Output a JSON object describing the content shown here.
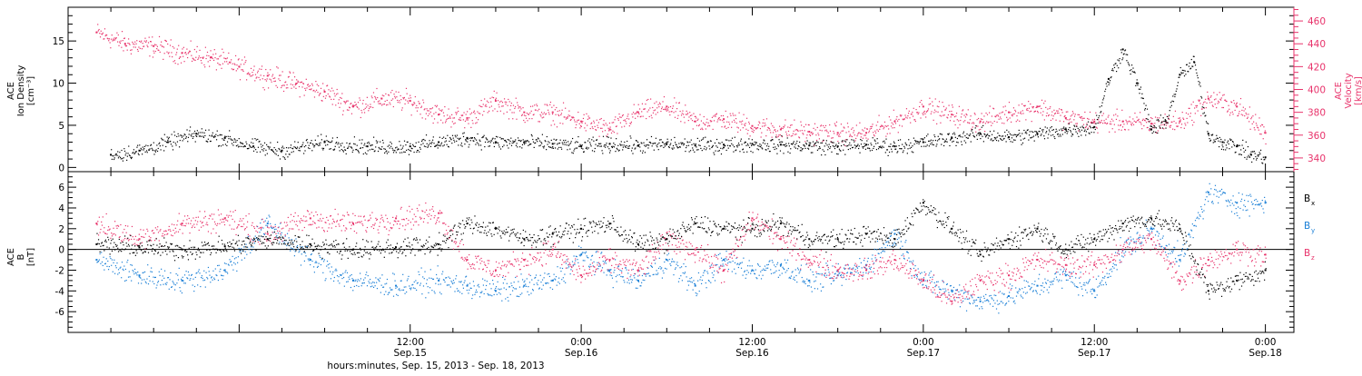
{
  "colors": {
    "density": "#000000",
    "velocity": "#e8336b",
    "bx": "#000000",
    "by": "#1a7fd6",
    "bz": "#e8336b",
    "axis": "#000000"
  },
  "xaxis": {
    "title": "hours:minutes, Sep. 15, 2013 - Sep. 18, 2013",
    "range_hours": [
      -12,
      74
    ],
    "major_ticks": [
      {
        "hours": 12,
        "time": "12:00",
        "date": "Sep.15"
      },
      {
        "hours": 24,
        "time": "0:00",
        "date": "Sep.16"
      },
      {
        "hours": 36,
        "time": "12:00",
        "date": "Sep.16"
      },
      {
        "hours": 48,
        "time": "0:00",
        "date": "Sep.17"
      },
      {
        "hours": 60,
        "time": "12:00",
        "date": "Sep.17"
      },
      {
        "hours": 72,
        "time": "0:00",
        "date": "Sep.18"
      }
    ]
  },
  "chart_data": [
    {
      "type": "scatter",
      "panel": "top",
      "left_ylabel_lines": [
        "ACE",
        "Ion Density",
        "[cm⁻³]"
      ],
      "right_ylabel_lines": [
        "ACE",
        "Velocity",
        "[km/s]"
      ],
      "left_ylim": [
        -0.5,
        19
      ],
      "left_ticks": [
        0,
        5,
        10,
        15
      ],
      "right_ylim": [
        328,
        472
      ],
      "right_ticks": [
        340,
        360,
        380,
        400,
        420,
        440,
        460
      ],
      "series": [
        {
          "key": "density",
          "x_hours": [
            -9,
            -7,
            -5,
            -3,
            -1,
            1,
            3,
            6,
            9,
            12,
            14,
            16,
            18,
            20,
            22,
            24,
            26,
            28,
            30,
            32,
            34,
            36,
            38,
            40,
            42,
            44,
            46,
            48,
            50,
            52,
            54,
            56,
            58,
            60,
            61,
            62,
            63,
            64,
            65,
            66,
            67,
            68,
            69,
            70,
            71,
            72
          ],
          "values": [
            1.5,
            2.0,
            3.0,
            4.0,
            3.5,
            2.5,
            2.0,
            3.0,
            2.5,
            2.5,
            3.0,
            3.5,
            3.0,
            3.0,
            2.8,
            2.5,
            2.8,
            2.6,
            2.8,
            2.6,
            2.7,
            2.8,
            2.7,
            2.6,
            2.5,
            2.7,
            2.5,
            3.0,
            3.5,
            4.0,
            3.6,
            4.0,
            4.5,
            4.8,
            10.5,
            14.0,
            10.0,
            4.5,
            5.5,
            11.0,
            12.5,
            4.0,
            3.0,
            2.5,
            1.5,
            1.2
          ]
        },
        {
          "key": "velocity",
          "x_hours": [
            -10,
            -8,
            -6,
            -4,
            -2,
            0,
            2,
            4,
            6,
            8,
            10,
            12,
            14,
            16,
            18,
            20,
            22,
            24,
            26,
            28,
            30,
            32,
            34,
            36,
            38,
            40,
            42,
            44,
            46,
            48,
            50,
            52,
            54,
            56,
            58,
            60,
            62,
            64,
            66,
            68,
            70,
            72
          ],
          "values": [
            450,
            440,
            438,
            432,
            428,
            420,
            412,
            405,
            398,
            385,
            392,
            390,
            378,
            375,
            390,
            380,
            380,
            372,
            365,
            380,
            385,
            372,
            374,
            368,
            365,
            363,
            362,
            362,
            372,
            385,
            378,
            372,
            380,
            385,
            375,
            372,
            372,
            370,
            372,
            392,
            385,
            362
          ]
        }
      ]
    },
    {
      "type": "scatter",
      "panel": "bottom",
      "ylabel_lines": [
        "ACE",
        "B",
        "[nT]"
      ],
      "ylim": [
        -8,
        7.5
      ],
      "ticks": [
        -6,
        -4,
        -2,
        0,
        2,
        4,
        6
      ],
      "zero_line": true,
      "legend": [
        "Bx",
        "By",
        "Bz"
      ],
      "series": [
        {
          "key": "bx",
          "legend_base": "B",
          "legend_sub": "x",
          "x_hours": [
            -10,
            -7,
            -4,
            -1,
            2,
            5,
            8,
            11,
            14,
            16,
            18,
            20,
            22,
            24,
            26,
            28,
            30,
            32,
            34,
            36,
            38,
            40,
            42,
            44,
            46,
            48,
            50,
            52,
            54,
            56,
            58,
            60,
            62,
            64,
            66,
            68,
            70,
            72
          ],
          "values": [
            0.5,
            0.2,
            0.0,
            0.3,
            1.0,
            0.5,
            0.0,
            0.2,
            0.5,
            2.5,
            2.0,
            1.0,
            1.5,
            2.0,
            2.5,
            0.5,
            1.0,
            2.5,
            2.0,
            2.0,
            2.5,
            1.0,
            1.0,
            1.5,
            1.0,
            4.5,
            2.0,
            -0.5,
            1.0,
            2.0,
            0.0,
            1.0,
            2.5,
            3.0,
            2.0,
            -4.0,
            -3.0,
            -2.0
          ]
        },
        {
          "key": "by",
          "legend_base": "B",
          "legend_sub": "y",
          "x_hours": [
            -10,
            -7,
            -4,
            -1,
            2,
            5,
            8,
            11,
            14,
            16,
            18,
            20,
            22,
            24,
            26,
            28,
            30,
            32,
            34,
            36,
            38,
            40,
            42,
            44,
            46,
            48,
            50,
            52,
            54,
            56,
            58,
            60,
            62,
            64,
            66,
            68,
            70,
            72
          ],
          "values": [
            -1.0,
            -2.5,
            -3.0,
            -2.0,
            2.5,
            -1.0,
            -3.0,
            -3.5,
            -3.0,
            -3.5,
            -4.0,
            -3.5,
            -3.0,
            -0.5,
            -2.0,
            -3.0,
            -1.0,
            -3.5,
            -1.0,
            -2.0,
            -1.5,
            -3.0,
            -2.5,
            -1.5,
            1.5,
            -3.0,
            -4.0,
            -5.0,
            -4.5,
            -3.5,
            -2.5,
            -4.0,
            0.0,
            2.0,
            -1.0,
            5.5,
            4.5,
            4.5
          ]
        },
        {
          "key": "bz",
          "legend_base": "B",
          "legend_sub": "z",
          "x_hours": [
            -10,
            -7,
            -4,
            -1,
            2,
            5,
            8,
            11,
            14,
            16,
            18,
            20,
            22,
            24,
            26,
            28,
            30,
            32,
            34,
            36,
            38,
            40,
            42,
            44,
            46,
            48,
            50,
            52,
            54,
            56,
            58,
            60,
            62,
            64,
            66,
            68,
            70,
            72
          ],
          "values": [
            2.5,
            1.0,
            2.5,
            3.0,
            1.5,
            3.0,
            2.5,
            3.0,
            3.5,
            -1.0,
            -2.0,
            -1.0,
            0.0,
            -2.5,
            -1.0,
            -2.0,
            1.0,
            0.0,
            -2.0,
            3.0,
            1.0,
            -1.0,
            -2.0,
            -2.0,
            -1.0,
            -3.0,
            -5.0,
            -3.0,
            -2.5,
            -1.0,
            -1.5,
            -1.5,
            0.0,
            1.0,
            -3.0,
            -1.0,
            0.0,
            -0.5
          ]
        }
      ]
    }
  ]
}
